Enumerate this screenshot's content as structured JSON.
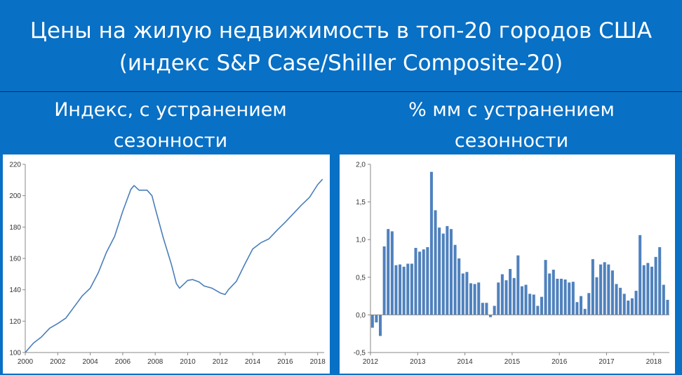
{
  "title": {
    "line1": "Цены на жилую недвижимость в топ-20 городов США",
    "line2": "(индекс S&P Case/Shiller Composite-20)"
  },
  "subtitles": {
    "left": [
      "Индекс, с устранением",
      "сезонности"
    ],
    "right": [
      "% мм с устранением",
      "сезонности"
    ]
  },
  "colors": {
    "background": "#0870c5",
    "line": "#4a7ebb",
    "bar": "#4f81bd"
  },
  "chart_data": [
    {
      "type": "line",
      "x_ticks": [
        "2000",
        "2002",
        "2004",
        "2006",
        "2008",
        "2010",
        "2012",
        "2014",
        "2016",
        "2018"
      ],
      "y_ticks": [
        "100",
        "120",
        "140",
        "160",
        "180",
        "200",
        "220"
      ],
      "xlim": [
        2000,
        2018.4
      ],
      "ylim": [
        100,
        220
      ],
      "grid": false,
      "points": [
        [
          2000.0,
          100.0
        ],
        [
          2000.5,
          106.0
        ],
        [
          2001.0,
          110.0
        ],
        [
          2001.5,
          115.5
        ],
        [
          2002.0,
          118.5
        ],
        [
          2002.5,
          122.0
        ],
        [
          2003.0,
          129.0
        ],
        [
          2003.5,
          136.0
        ],
        [
          2004.0,
          141.0
        ],
        [
          2004.5,
          151.0
        ],
        [
          2005.0,
          164.0
        ],
        [
          2005.5,
          174.0
        ],
        [
          2006.0,
          190.0
        ],
        [
          2006.5,
          204.0
        ],
        [
          2006.7,
          206.5
        ],
        [
          2007.0,
          203.5
        ],
        [
          2007.5,
          203.5
        ],
        [
          2007.8,
          200.0
        ],
        [
          2008.0,
          192.0
        ],
        [
          2008.5,
          173.0
        ],
        [
          2009.0,
          156.0
        ],
        [
          2009.3,
          144.0
        ],
        [
          2009.5,
          141.0
        ],
        [
          2010.0,
          146.0
        ],
        [
          2010.3,
          146.5
        ],
        [
          2010.7,
          145.0
        ],
        [
          2011.0,
          142.5
        ],
        [
          2011.5,
          141.0
        ],
        [
          2012.0,
          138.0
        ],
        [
          2012.3,
          137.0
        ],
        [
          2012.5,
          140.0
        ],
        [
          2013.0,
          145.5
        ],
        [
          2013.5,
          156.0
        ],
        [
          2014.0,
          166.0
        ],
        [
          2014.5,
          170.0
        ],
        [
          2015.0,
          172.5
        ],
        [
          2015.5,
          178.0
        ],
        [
          2016.0,
          183.0
        ],
        [
          2016.5,
          188.5
        ],
        [
          2017.0,
          194.0
        ],
        [
          2017.5,
          199.0
        ],
        [
          2018.0,
          207.0
        ],
        [
          2018.3,
          210.5
        ]
      ]
    },
    {
      "type": "bar",
      "x_ticks": [
        "2012",
        "2013",
        "2014",
        "2015",
        "2016",
        "2017",
        "2018"
      ],
      "y_ticks": [
        "2,0",
        "1,5",
        "1,0",
        "0,5",
        "0,0",
        "-0,5"
      ],
      "xlim": [
        2012,
        2018.33
      ],
      "ylim": [
        -0.5,
        2.0
      ],
      "grid": false,
      "start_year": 2012,
      "months_per_bar": 1,
      "values": [
        -0.17,
        -0.1,
        -0.28,
        0.91,
        1.14,
        1.11,
        0.66,
        0.67,
        0.64,
        0.68,
        0.68,
        0.89,
        0.84,
        0.87,
        0.9,
        1.9,
        1.39,
        1.16,
        1.08,
        1.18,
        1.14,
        0.93,
        0.75,
        0.55,
        0.57,
        0.42,
        0.41,
        0.43,
        0.16,
        0.16,
        -0.03,
        0.12,
        0.43,
        0.54,
        0.46,
        0.61,
        0.49,
        0.79,
        0.38,
        0.4,
        0.28,
        0.27,
        0.12,
        0.24,
        0.73,
        0.55,
        0.6,
        0.48,
        0.48,
        0.47,
        0.43,
        0.44,
        0.17,
        0.25,
        0.08,
        0.29,
        0.74,
        0.5,
        0.67,
        0.7,
        0.67,
        0.59,
        0.41,
        0.36,
        0.28,
        0.19,
        0.22,
        0.32,
        1.06,
        0.66,
        0.69,
        0.64,
        0.77,
        0.9,
        0.4,
        0.2
      ]
    }
  ]
}
